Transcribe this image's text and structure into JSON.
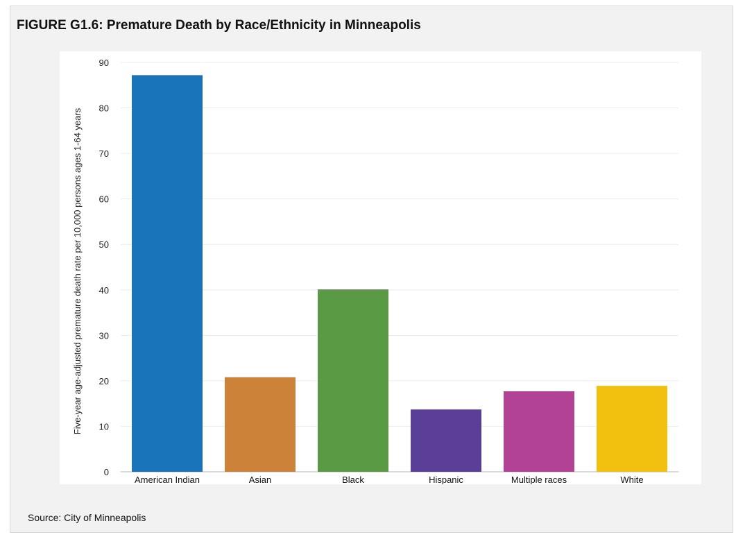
{
  "figure": {
    "title": "FIGURE G1.6: Premature Death by Race/Ethnicity in Minneapolis",
    "source": "Source: City of Minneapolis"
  },
  "chart_data": {
    "type": "bar",
    "categories": [
      "American Indian",
      "Asian",
      "Black",
      "Hispanic",
      "Multiple races",
      "White"
    ],
    "values": [
      87.2,
      20.8,
      40.1,
      13.7,
      17.7,
      18.9
    ],
    "colors": [
      "#1873b8",
      "#cd8239",
      "#5a9a45",
      "#5b3e97",
      "#b24394",
      "#f2c10f"
    ],
    "ylabel": "Five-year age-adjusted  premature death rate per 10,000 persons ages 1-64 years",
    "xlabel": "",
    "ylim": [
      0,
      90
    ],
    "yticks": [
      0,
      10,
      20,
      30,
      40,
      50,
      60,
      70,
      80,
      90
    ],
    "grid": true
  }
}
